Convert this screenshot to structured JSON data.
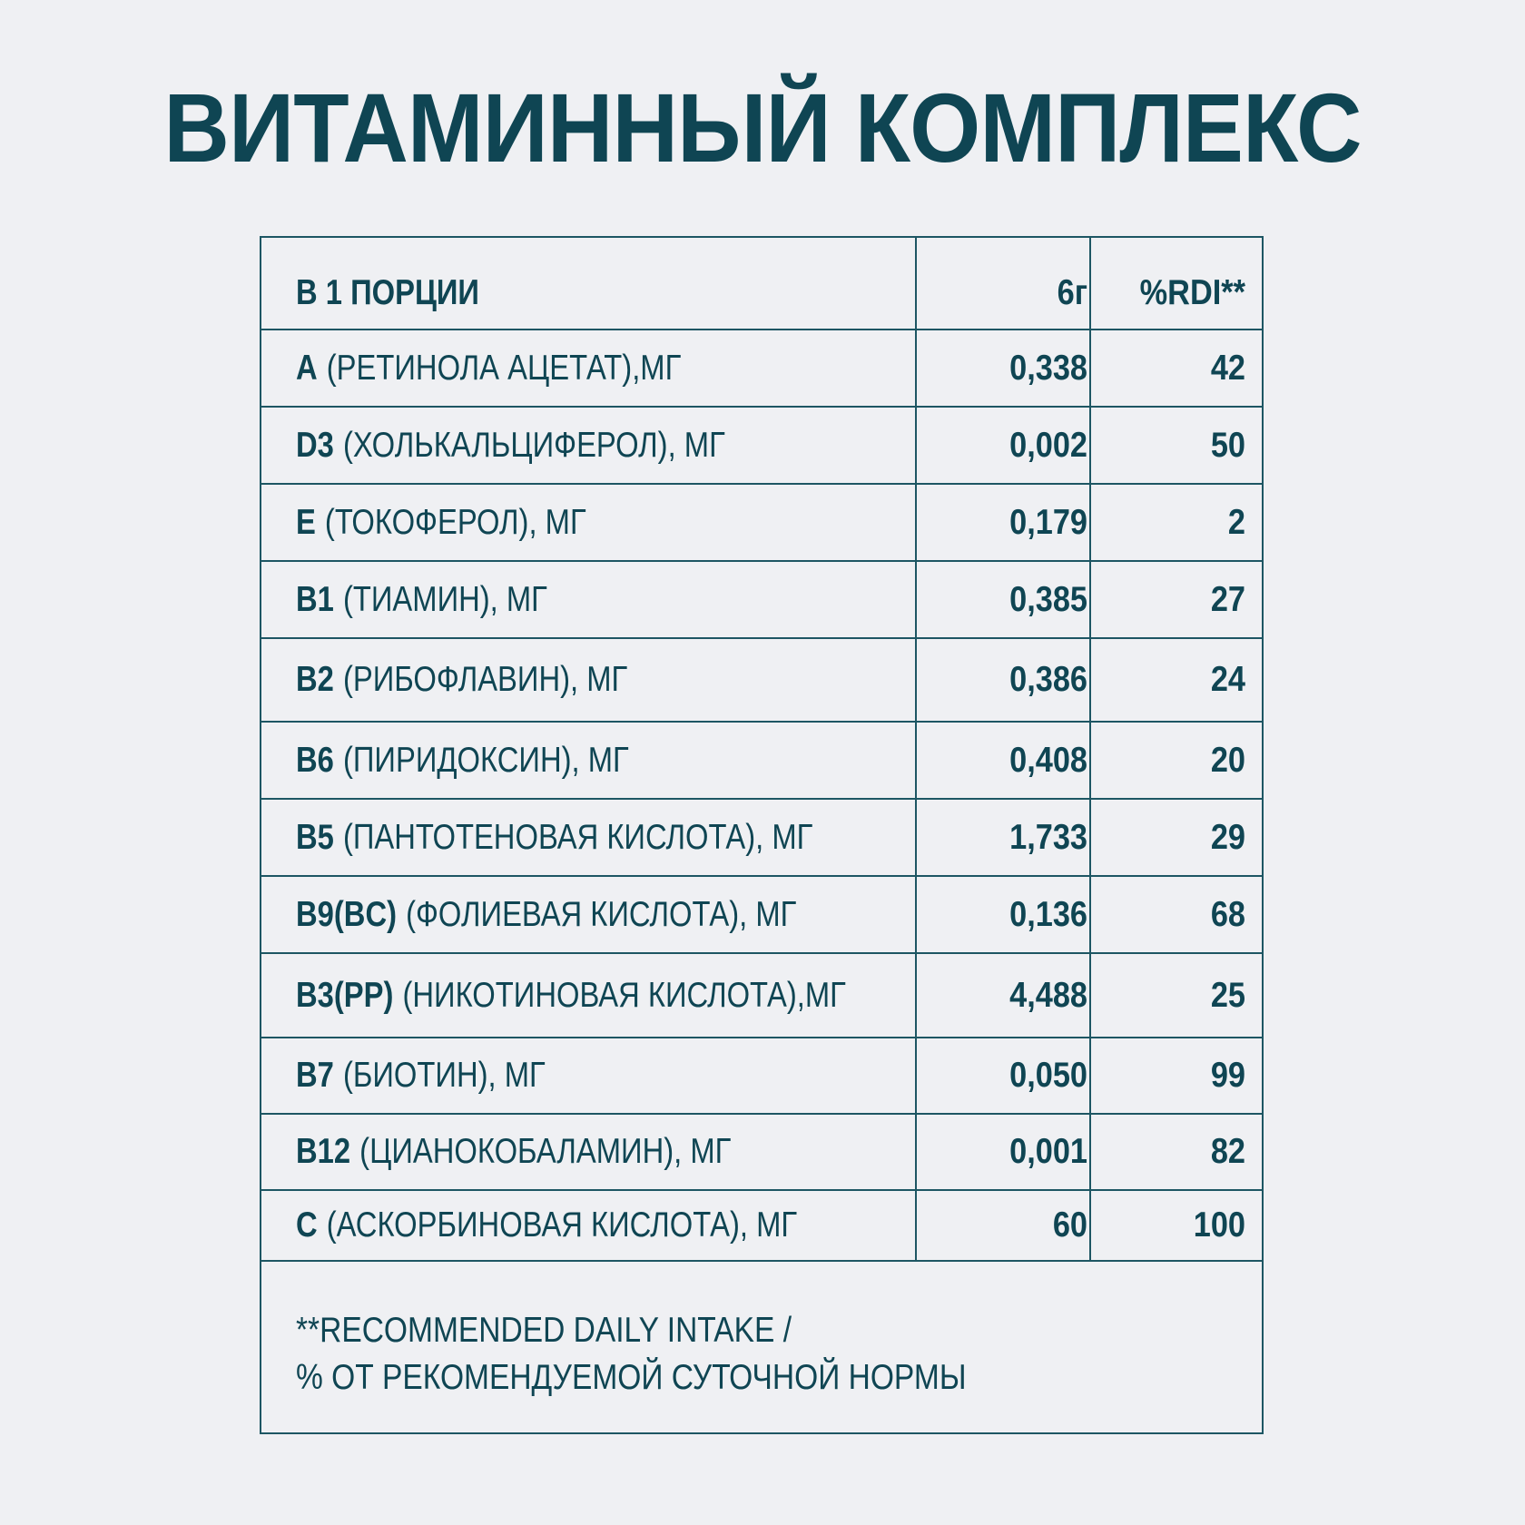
{
  "title": "ВИТАМИННЫЙ КОМПЛЕКС",
  "table": {
    "header": {
      "name": "В 1 ПОРЦИИ",
      "qty": "6г",
      "rdi": "%RDI**"
    },
    "rows": [
      {
        "code": "A",
        "desc": "(РЕТИНОЛА АЦЕТАТ),МГ",
        "qty": "0,338",
        "rdi": "42"
      },
      {
        "code": "D3",
        "desc": "(ХОЛЬКАЛЬЦИФЕРОЛ), МГ",
        "qty": "0,002",
        "rdi": "50"
      },
      {
        "code": "E",
        "desc": "(ТОКОФЕРОЛ), МГ",
        "qty": "0,179",
        "rdi": "2"
      },
      {
        "code": "B1",
        "desc": "(ТИАМИН), МГ",
        "qty": "0,385",
        "rdi": "27"
      },
      {
        "code": "B2",
        "desc": "(РИБОФЛАВИН), МГ",
        "qty": "0,386",
        "rdi": "24"
      },
      {
        "code": "B6",
        "desc": "(ПИРИДОКСИН), МГ",
        "qty": "0,408",
        "rdi": "20"
      },
      {
        "code": "B5",
        "desc": "(ПАНТОТЕНОВАЯ КИСЛОТА), МГ",
        "qty": "1,733",
        "rdi": "29"
      },
      {
        "code": "B9(BC)",
        "desc": "(ФОЛИЕВАЯ КИСЛОТА), МГ",
        "qty": "0,136",
        "rdi": "68"
      },
      {
        "code": "B3(PP)",
        "desc": "(НИКОТИНОВАЯ КИСЛОТА),МГ",
        "qty": "4,488",
        "rdi": "25"
      },
      {
        "code": "B7",
        "desc": "(БИОТИН), МГ",
        "qty": "0,050",
        "rdi": "99"
      },
      {
        "code": "B12",
        "desc": "(ЦИАНОКОБАЛАМИН), МГ",
        "qty": "0,001",
        "rdi": "82"
      },
      {
        "code": "C",
        "desc": "(АСКОРБИНОВАЯ КИСЛОТА), МГ",
        "qty": "60",
        "rdi": "100"
      }
    ],
    "footnote": {
      "line1": "**RECOMMENDED DAILY INTAKE /",
      "line2": "% ОТ РЕКОМЕНДУЕМОЙ СУТОЧНОЙ НОРМЫ"
    }
  }
}
